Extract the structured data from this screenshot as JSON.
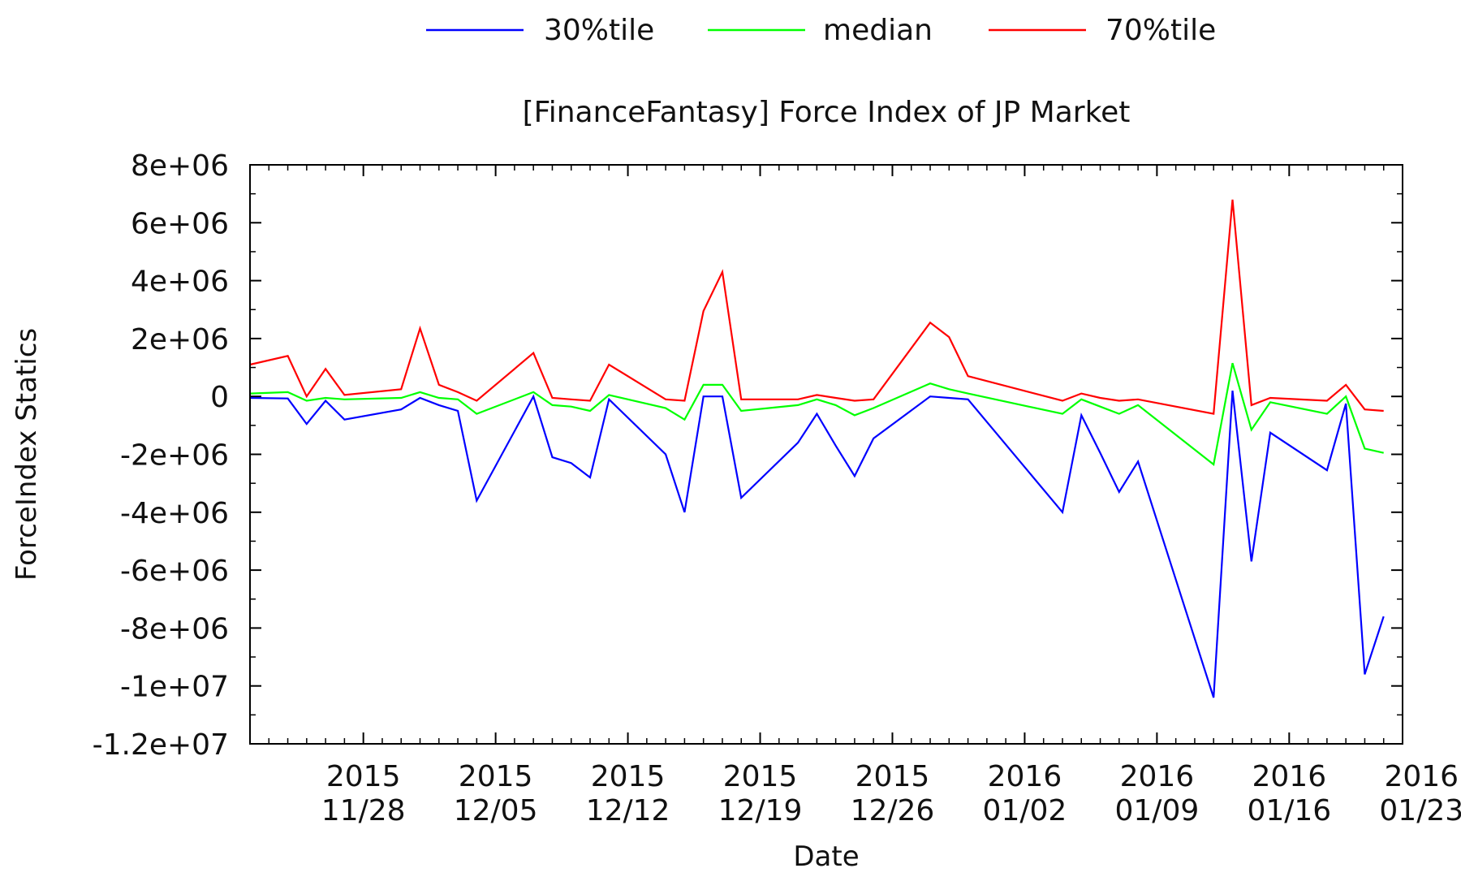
{
  "chart_data": {
    "type": "line",
    "title": "[FinanceFantasy] Force Index of JP Market",
    "xlabel": "Date",
    "ylabel": "ForceIndex Statics",
    "ylim": [
      -12000000,
      8000000
    ],
    "yticks": [
      {
        "value": 8000000,
        "label": "8e+06"
      },
      {
        "value": 6000000,
        "label": "6e+06"
      },
      {
        "value": 4000000,
        "label": "4e+06"
      },
      {
        "value": 2000000,
        "label": "2e+06"
      },
      {
        "value": 0,
        "label": "0"
      },
      {
        "value": -2000000,
        "label": "-2e+06"
      },
      {
        "value": -4000000,
        "label": "-4e+06"
      },
      {
        "value": -6000000,
        "label": "-6e+06"
      },
      {
        "value": -8000000,
        "label": "-8e+06"
      },
      {
        "value": -10000000,
        "label": "-1e+07"
      },
      {
        "value": -12000000,
        "label": "-1.2e+07"
      }
    ],
    "xlim_days": [
      -6,
      55
    ],
    "xticks": [
      {
        "day": 0,
        "year": "2015",
        "date": "11/28"
      },
      {
        "day": 7,
        "year": "2015",
        "date": "12/05"
      },
      {
        "day": 14,
        "year": "2015",
        "date": "12/12"
      },
      {
        "day": 21,
        "year": "2015",
        "date": "12/19"
      },
      {
        "day": 28,
        "year": "2015",
        "date": "12/26"
      },
      {
        "day": 35,
        "year": "2016",
        "date": "01/02"
      },
      {
        "day": 42,
        "year": "2016",
        "date": "01/09"
      },
      {
        "day": 49,
        "year": "2016",
        "date": "01/16"
      },
      {
        "day": 56,
        "year": "2016",
        "date": "01/23"
      }
    ],
    "x_days": [
      -6,
      -4,
      -3,
      -2,
      -1,
      2,
      3,
      4,
      5,
      6,
      9,
      10,
      11,
      12,
      13,
      16,
      17,
      18,
      19,
      20,
      23,
      24,
      25,
      26,
      27,
      30,
      31,
      32,
      37,
      38,
      39,
      40,
      41,
      45,
      46,
      47,
      48,
      51,
      52,
      53,
      54
    ],
    "series": [
      {
        "name": "30%tile",
        "color": "#0000ff",
        "values": [
          -50000,
          -70000,
          -950000,
          -150000,
          -800000,
          -450000,
          -50000,
          -300000,
          -500000,
          -3600000,
          0,
          -2100000,
          -2300000,
          -2800000,
          -100000,
          -2000000,
          -4000000,
          0,
          0,
          -3500000,
          -1600000,
          -600000,
          -1700000,
          -2750000,
          -1450000,
          0,
          -50000,
          -100000,
          -4000000,
          -650000,
          -1950000,
          -3300000,
          -2250000,
          -10400000,
          200000,
          -5700000,
          -1250000,
          -2550000,
          -250000,
          -9600000,
          -7600000
        ]
      },
      {
        "name": "median",
        "color": "#00ff00",
        "values": [
          100000,
          150000,
          -150000,
          -50000,
          -100000,
          -50000,
          150000,
          -50000,
          -100000,
          -600000,
          150000,
          -300000,
          -350000,
          -500000,
          50000,
          -400000,
          -800000,
          400000,
          400000,
          -500000,
          -300000,
          -100000,
          -300000,
          -650000,
          -400000,
          450000,
          250000,
          100000,
          -600000,
          -100000,
          -350000,
          -600000,
          -300000,
          -2350000,
          1150000,
          -1150000,
          -200000,
          -600000,
          0,
          -1800000,
          -1950000
        ]
      },
      {
        "name": "70%tile",
        "color": "#ff0000",
        "values": [
          1100000,
          1400000,
          0,
          950000,
          50000,
          250000,
          2350000,
          400000,
          150000,
          -150000,
          1500000,
          -50000,
          -100000,
          -150000,
          1100000,
          -100000,
          -150000,
          2950000,
          4300000,
          -100000,
          -100000,
          50000,
          -50000,
          -150000,
          -100000,
          2550000,
          2050000,
          700000,
          -150000,
          100000,
          -50000,
          -150000,
          -100000,
          -600000,
          6800000,
          -300000,
          -50000,
          -150000,
          400000,
          -450000,
          -500000
        ]
      }
    ]
  }
}
